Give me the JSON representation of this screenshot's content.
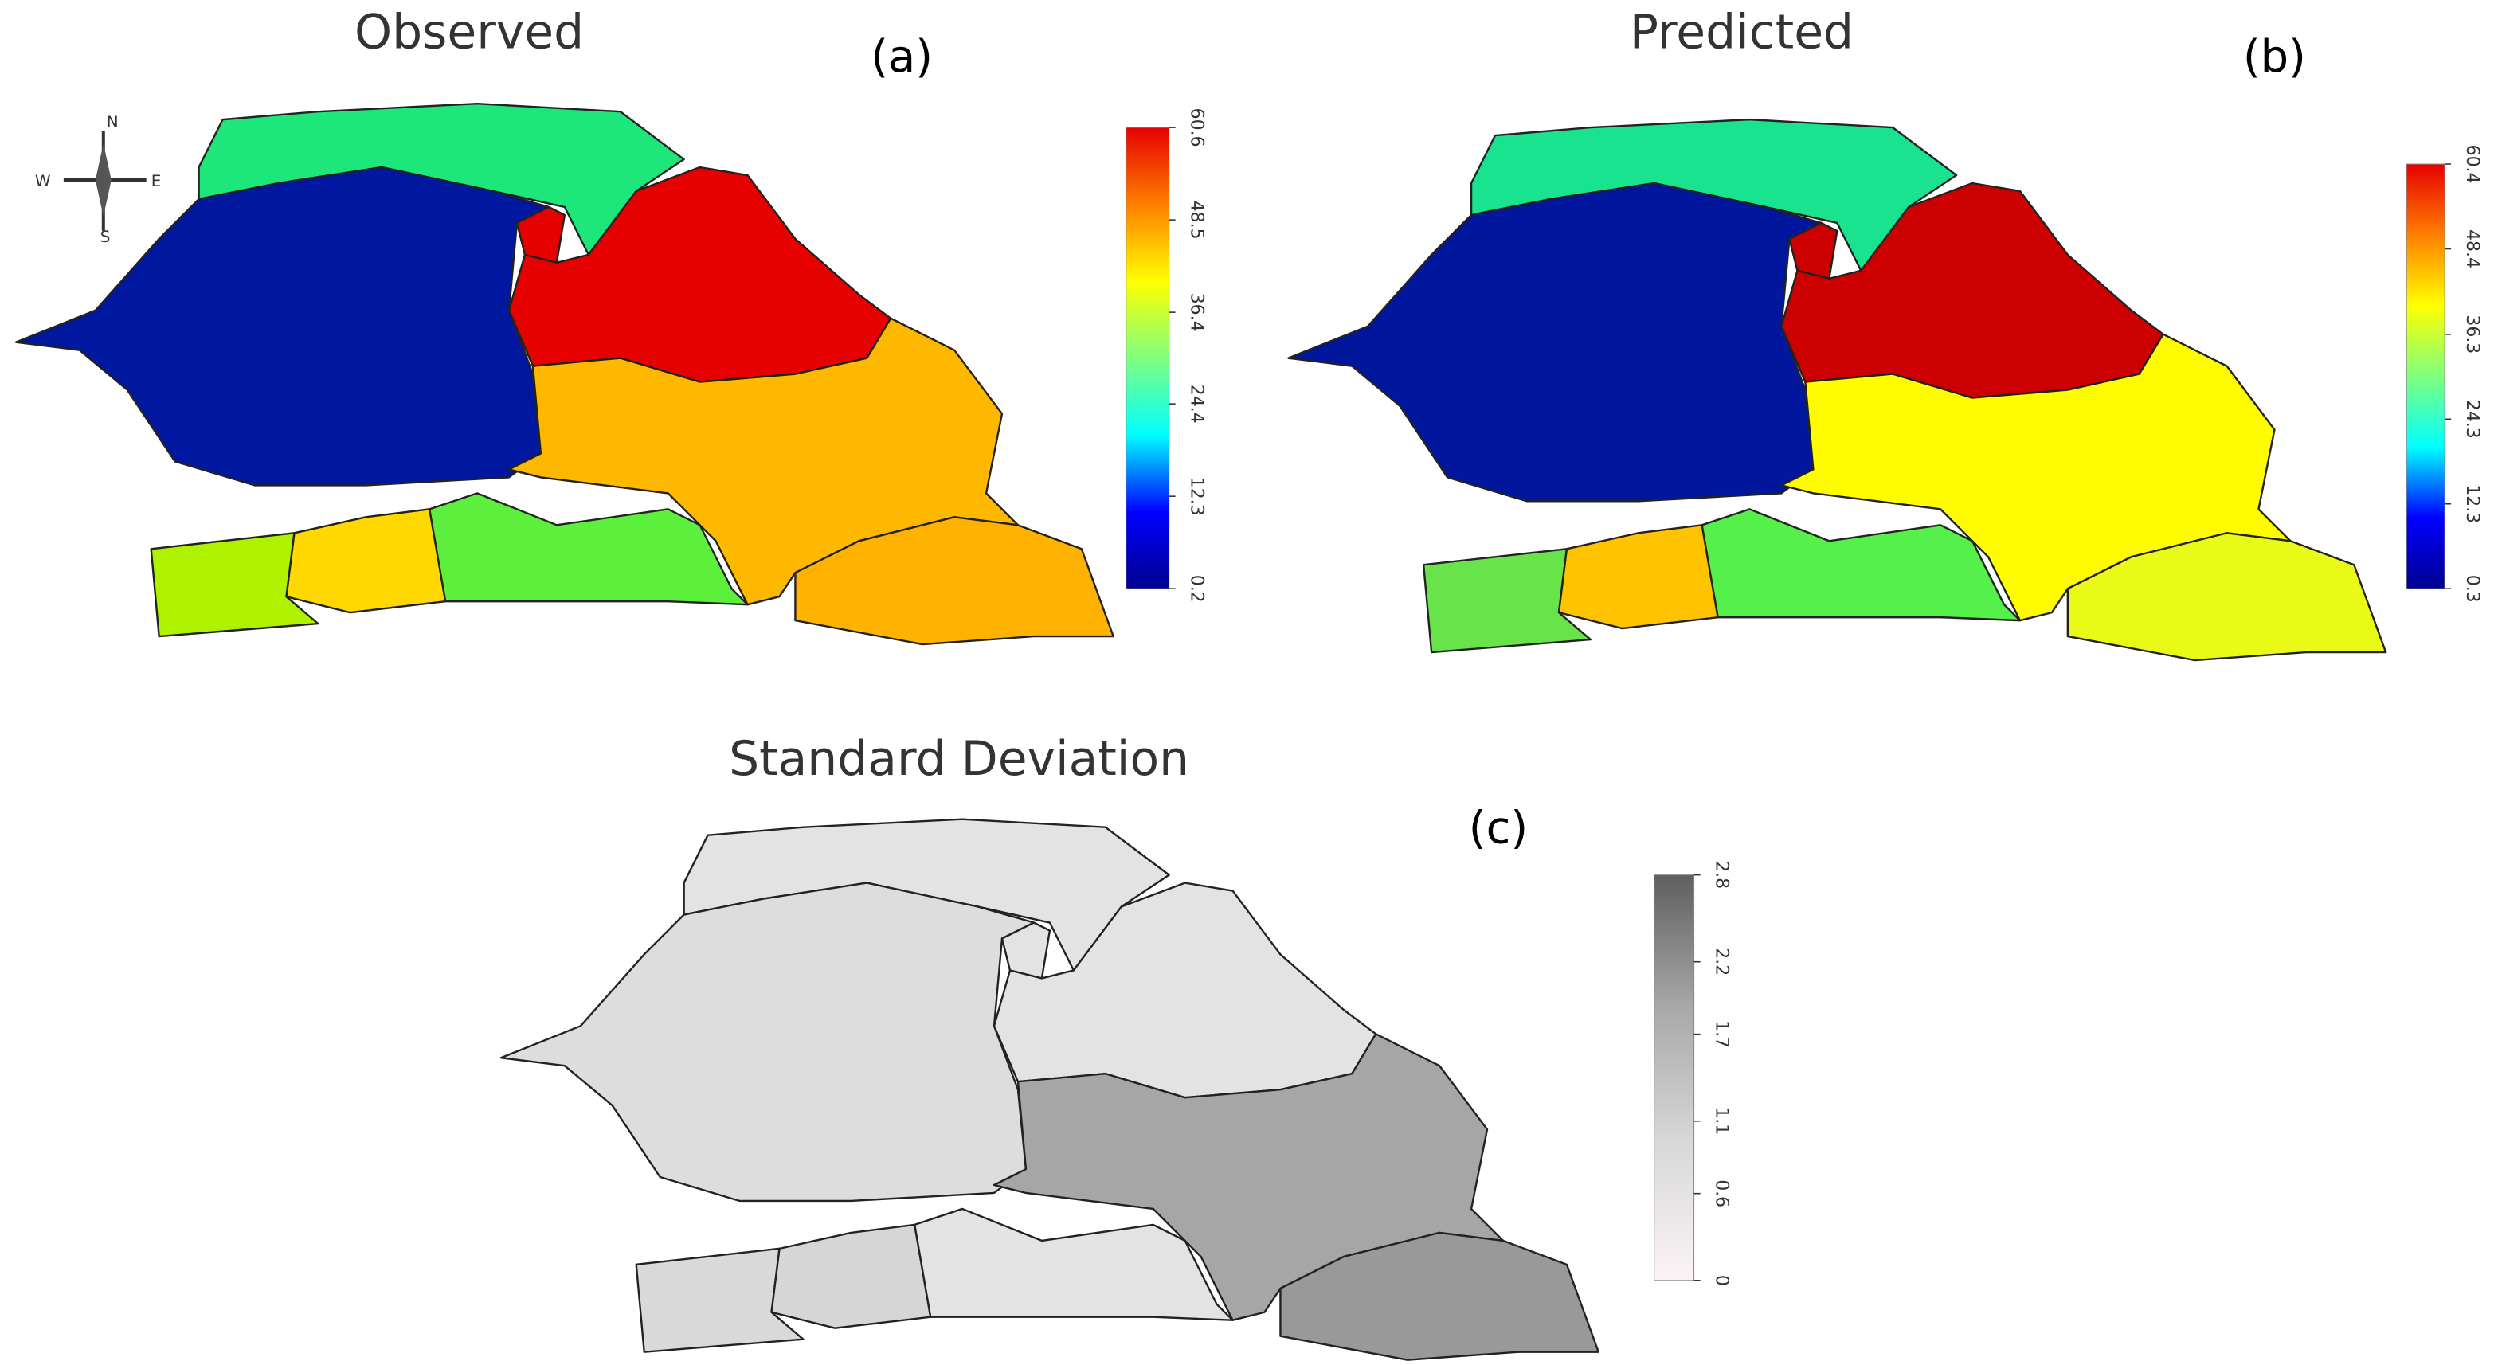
{
  "maps": [
    {
      "title": "Observed",
      "label": "(a)",
      "colorbar": {
        "lim": [
          0.2,
          60.6
        ],
        "ticks": [
          0.2,
          12.3,
          24.4,
          36.4,
          48.5,
          60.6
        ],
        "colors": [
          "#00008f",
          "#0000ff",
          "#00ffff",
          "#7fff7f",
          "#ffff00",
          "#ff7f00",
          "#e60000"
        ]
      },
      "region_colors": [
        "#1de67a",
        "#00179f",
        "#e60000",
        "#e60000",
        "#ffb800",
        "#ffb300",
        "#5cf03c",
        "#ffd800",
        "#aef200"
      ]
    },
    {
      "title": "Predicted",
      "label": "(b)",
      "colorbar": {
        "lim": [
          0.3,
          60.4
        ],
        "ticks": [
          0.3,
          12.3,
          24.3,
          36.3,
          48.4,
          60.4
        ],
        "colors": [
          "#00008f",
          "#0000ff",
          "#00ffff",
          "#7fff7f",
          "#ffff00",
          "#ff7f00",
          "#e60000"
        ]
      },
      "region_colors": [
        "#19e38f",
        "#00169c",
        "#cc0000",
        "#cc0000",
        "#fffc00",
        "#e8fa16",
        "#55f04a",
        "#ffc300",
        "#68e34a"
      ]
    },
    {
      "title": "Standard Deviation",
      "label": "(c)",
      "colorbar": {
        "lim": [
          0,
          2.8
        ],
        "ticks": [
          0,
          0.6,
          1.1,
          1.7,
          2.2,
          2.8
        ],
        "colors": [
          "#fbf3f5",
          "#d9d9d9",
          "#a9a9a9",
          "#5f5f5f"
        ]
      },
      "region_colors": [
        "#e3e3e3",
        "#dddddd",
        "#e3e3e3",
        "#e3e3e3",
        "#a6a6a6",
        "#999999",
        "#e3e3e3",
        "#d6d6d6",
        "#d9d9d9"
      ]
    }
  ],
  "compass": {
    "n": "N",
    "s": "S",
    "e": "E",
    "w": "W"
  }
}
